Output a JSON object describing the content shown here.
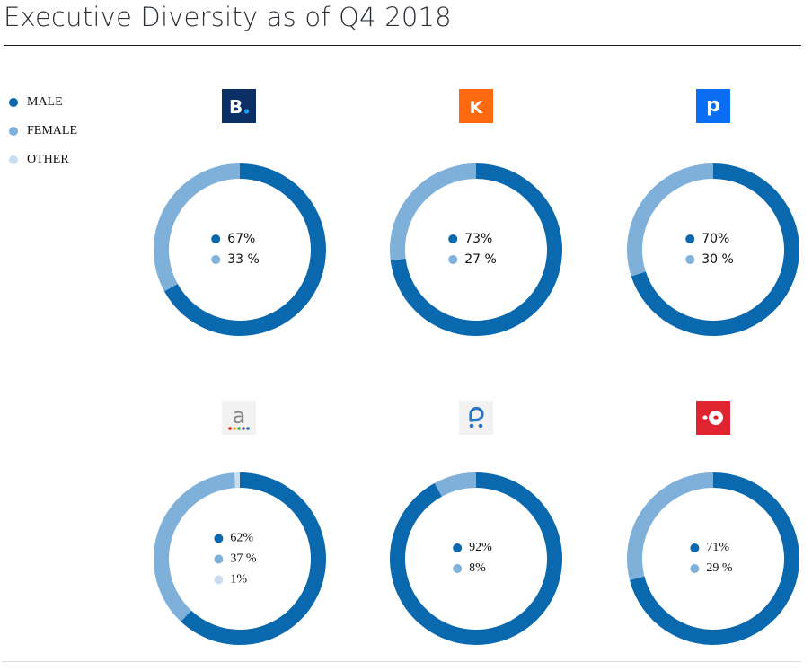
{
  "page": {
    "title": "Executive Diversity as of Q4 2018"
  },
  "legend": [
    {
      "label": "MALE",
      "color": "#0a69ae"
    },
    {
      "label": "FEMALE",
      "color": "#7fb0d9"
    },
    {
      "label": "OTHER",
      "color": "#c9ddee"
    }
  ],
  "companies": [
    {
      "logo": "booking-logo",
      "logo_text": "B.",
      "logo_bg": "#0c2f66",
      "logo_fg": "#ffffff",
      "logo_accent": "#1aa1e8",
      "labels": [
        "67%",
        "33 %"
      ]
    },
    {
      "logo": "kayak-logo",
      "logo_text": "K",
      "logo_bg": "#ff690f",
      "logo_fg": "#ffffff",
      "labels": [
        "73%",
        "27 %"
      ]
    },
    {
      "logo": "priceline-logo",
      "logo_text": "p",
      "logo_bg": "#0a6ef5",
      "logo_fg": "#ffffff",
      "labels": [
        "70%",
        "30 %"
      ]
    },
    {
      "logo": "agoda-logo",
      "logo_text": "a",
      "logo_bg": "#f2f2f2",
      "logo_fg": "#8a8a8a",
      "logo_dots": [
        "#e2231a",
        "#f7a11a",
        "#3bae49",
        "#7a3f98",
        "#1d6fc0"
      ],
      "labels": [
        "62%",
        "37 %",
        "1%"
      ]
    },
    {
      "logo": "rentalcars-logo",
      "logo_text": "",
      "logo_bg": "#f2f2f2",
      "logo_fg": "#2a76c4",
      "labels": [
        "92%",
        "8%"
      ]
    },
    {
      "logo": "opentable-logo",
      "logo_text": "",
      "logo_bg": "#e0242f",
      "logo_fg": "#ffffff",
      "labels": [
        "71%",
        "29 %"
      ]
    }
  ],
  "chart_data": [
    {
      "type": "pie",
      "title": "Booking.com",
      "categories": [
        "Male",
        "Female"
      ],
      "values": [
        67,
        33
      ],
      "unit": "%"
    },
    {
      "type": "pie",
      "title": "KAYAK",
      "categories": [
        "Male",
        "Female"
      ],
      "values": [
        73,
        27
      ],
      "unit": "%"
    },
    {
      "type": "pie",
      "title": "Priceline",
      "categories": [
        "Male",
        "Female"
      ],
      "values": [
        70,
        30
      ],
      "unit": "%"
    },
    {
      "type": "pie",
      "title": "Agoda",
      "categories": [
        "Male",
        "Female",
        "Other"
      ],
      "values": [
        62,
        37,
        1
      ],
      "unit": "%"
    },
    {
      "type": "pie",
      "title": "Rentalcars.com",
      "categories": [
        "Male",
        "Female"
      ],
      "values": [
        92,
        8
      ],
      "unit": "%"
    },
    {
      "type": "pie",
      "title": "OpenTable",
      "categories": [
        "Male",
        "Female"
      ],
      "values": [
        71,
        29
      ],
      "unit": "%"
    }
  ]
}
